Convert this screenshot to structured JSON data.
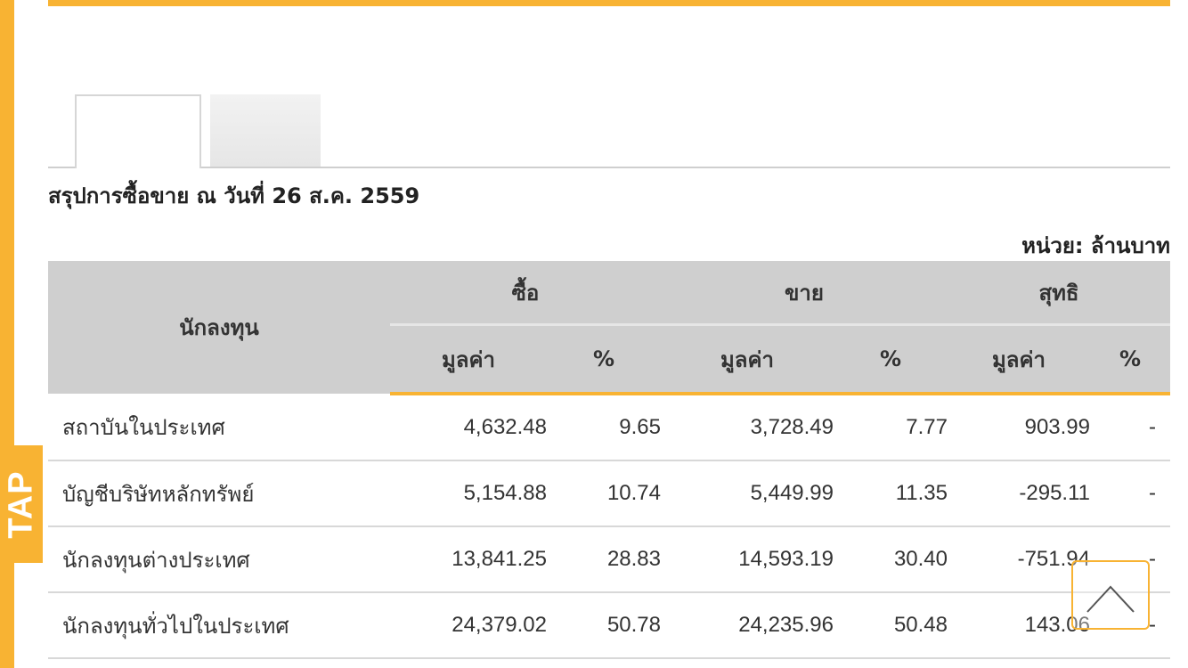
{
  "side_tab": {
    "label": "TAP"
  },
  "summary": {
    "title": "สรุปการซื้อขาย ณ วันที่ 26 ส.ค. 2559",
    "unit": "หน่วย: ล้านบาท"
  },
  "table": {
    "headers": {
      "investor": "นักลงทุน",
      "buy": "ซื้อ",
      "sell": "ขาย",
      "net": "สุทธิ",
      "value": "มูลค่า",
      "percent": "%"
    },
    "rows": [
      {
        "investor": "สถาบันในประเทศ",
        "buy_value": "4,632.48",
        "buy_pct": "9.65",
        "sell_value": "3,728.49",
        "sell_pct": "7.77",
        "net_value": "903.99",
        "net_pct": "-"
      },
      {
        "investor": "บัญชีบริษัทหลักทรัพย์",
        "buy_value": "5,154.88",
        "buy_pct": "10.74",
        "sell_value": "5,449.99",
        "sell_pct": "11.35",
        "net_value": "-295.11",
        "net_pct": "-"
      },
      {
        "investor": "นักลงทุนต่างประเทศ",
        "buy_value": "13,841.25",
        "buy_pct": "28.83",
        "sell_value": "14,593.19",
        "sell_pct": "30.40",
        "net_value": "-751.94",
        "net_pct": "-"
      },
      {
        "investor": "นักลงทุนทั่วไปในประเทศ",
        "buy_value": "24,379.02",
        "buy_pct": "50.78",
        "sell_value": "24,235.96",
        "sell_pct": "50.48",
        "net_value": "143.06",
        "net_pct": "-"
      }
    ]
  },
  "colors": {
    "accent": "#f8b333",
    "positive": "#1a8a1a",
    "negative": "#e01010",
    "header_bg": "#cfcfcf"
  },
  "icons": {
    "back_to_top": "chevron-up-icon"
  }
}
